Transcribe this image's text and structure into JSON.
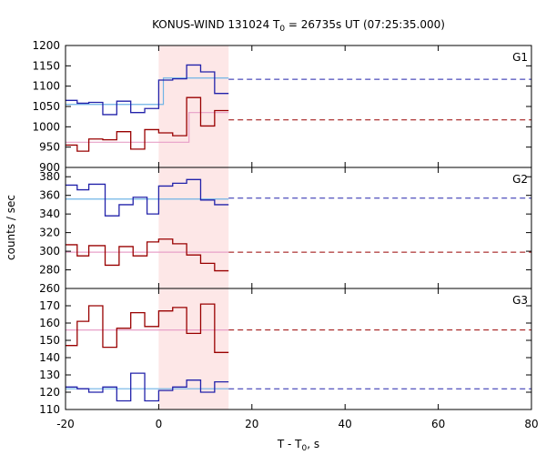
{
  "chart_data": {
    "type": "line",
    "title": "KONUS-WIND 131024 T",
    "title_sub": "0",
    "title_rest": " = 26735s UT (07:25:35.000)",
    "xlabel": "T - T",
    "xlabel_sub": "0",
    "xlabel_rest": ", s",
    "ylabel": "counts / sec",
    "xlim": [
      -20,
      80
    ],
    "xticks": [
      "-20",
      "0",
      "20",
      "40",
      "60",
      "80"
    ],
    "highlight": {
      "x0": 0,
      "x1": 15,
      "color": "#fde7e7"
    },
    "panels": [
      {
        "name": "G1",
        "ylim": [
          900,
          1200
        ],
        "yticks": [
          900,
          950,
          1000,
          1050,
          1100,
          1150,
          1200
        ],
        "series": [
          {
            "color": "#2222aa",
            "fit_color": "#6fb4e6",
            "edges": [
              -20,
              -17.5,
              -15,
              -12,
              -9,
              -6,
              -3,
              0,
              3,
              6,
              9,
              12,
              15
            ],
            "values": [
              1065,
              1058,
              1060,
              1030,
              1063,
              1035,
              1045,
              1115,
              1118,
              1152,
              1135,
              1082
            ],
            "fit": {
              "x0": -20,
              "x1": 15,
              "y0": 1055,
              "y1": 1120,
              "x_step": 1
            },
            "background": 1117
          },
          {
            "color": "#990000",
            "fit_color": "#e8a0c8",
            "edges": [
              -20,
              -17.5,
              -15,
              -12,
              -9,
              -6,
              -3,
              0,
              3,
              6,
              9,
              12,
              15
            ],
            "values": [
              955,
              940,
              970,
              968,
              988,
              945,
              993,
              985,
              978,
              1072,
              1002,
              1040
            ],
            "fit": {
              "x0": -20,
              "x1": 15,
              "y0": 962,
              "y1": 1035,
              "x_step": 6.5
            },
            "background": 1017
          }
        ]
      },
      {
        "name": "G2",
        "ylim": [
          260,
          390
        ],
        "yticks": [
          260,
          280,
          300,
          320,
          340,
          360,
          380
        ],
        "series": [
          {
            "color": "#2222aa",
            "fit_color": "#6fb4e6",
            "edges": [
              -20,
              -17.5,
              -15,
              -11.5,
              -8.5,
              -5.5,
              -2.5,
              0,
              3,
              6,
              9,
              12,
              15
            ],
            "values": [
              371,
              366,
              372,
              338,
              350,
              358,
              340,
              370,
              373,
              377,
              355,
              350
            ],
            "fit": {
              "x0": -20,
              "x1": 15,
              "y0": 356,
              "y1": 356
            },
            "background": 357
          },
          {
            "color": "#990000",
            "fit_color": "#e8a0c8",
            "edges": [
              -20,
              -17.5,
              -15,
              -11.5,
              -8.5,
              -5.5,
              -2.5,
              0,
              3,
              6,
              9,
              12,
              15
            ],
            "values": [
              307,
              295,
              306,
              285,
              305,
              295,
              310,
              313,
              308,
              296,
              287,
              279
            ],
            "fit": {
              "x0": -20,
              "x1": 15,
              "y0": 299,
              "y1": 299
            },
            "background": 299
          }
        ]
      },
      {
        "name": "G3",
        "ylim": [
          110,
          180
        ],
        "yticks": [
          110,
          120,
          130,
          140,
          150,
          160,
          170
        ],
        "series": [
          {
            "color": "#990000",
            "fit_color": "#e8a0c8",
            "edges": [
              -20,
              -17.5,
              -15,
              -12,
              -9,
              -6,
              -3,
              0,
              3,
              6,
              9,
              12,
              15
            ],
            "values": [
              147,
              161,
              170,
              146,
              157,
              166,
              158,
              167,
              169,
              154,
              171,
              143
            ],
            "fit": {
              "x0": -20,
              "x1": 15,
              "y0": 156,
              "y1": 156
            },
            "background": 156
          },
          {
            "color": "#2222aa",
            "fit_color": "#6fb4e6",
            "edges": [
              -20,
              -17.5,
              -15,
              -12,
              -9,
              -6,
              -3,
              0,
              3,
              6,
              9,
              12,
              15
            ],
            "values": [
              123,
              122,
              120,
              123,
              115,
              131,
              115,
              121,
              123,
              127,
              120,
              126
            ],
            "fit": {
              "x0": -20,
              "x1": 15,
              "y0": 122,
              "y1": 122
            },
            "background": 122
          }
        ]
      }
    ]
  }
}
